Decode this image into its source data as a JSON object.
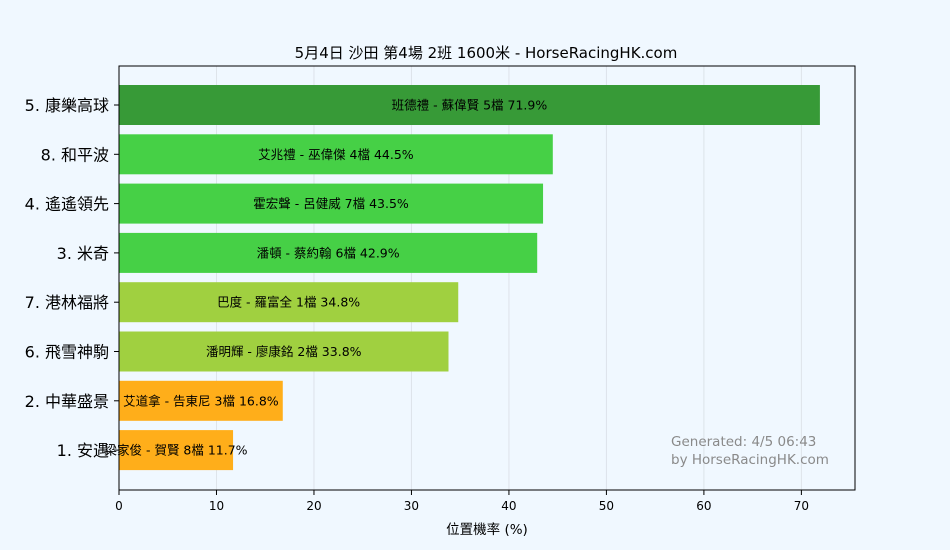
{
  "chart_data": {
    "type": "bar",
    "orientation": "horizontal",
    "title": "5月4日  沙田  第4場  2班  1600米 - HorseRacingHK.com",
    "xlabel": "位置機率 (%)",
    "ylabel": "",
    "xlim": [
      0,
      75.5
    ],
    "xticks": [
      0,
      10,
      20,
      30,
      40,
      50,
      60,
      70
    ],
    "grid": "vertical",
    "categories": [
      "5. 康樂高球",
      "8. 和平波",
      "4. 遙遙領先",
      "3. 米奇",
      "7. 港林福將",
      "6. 飛雪神駒",
      "2. 中華盛景",
      "1. 安遇"
    ],
    "values": [
      71.9,
      44.5,
      43.5,
      42.9,
      34.8,
      33.8,
      16.8,
      11.7
    ],
    "bar_labels": [
      "班德禮 - 蘇偉賢 5檔  71.9%",
      "艾兆禮 - 巫偉傑 4檔  44.5%",
      "霍宏聲 - 呂健威 7檔  43.5%",
      "潘頓 - 蔡約翰 6檔  42.9%",
      "巴度 - 羅富全 1檔  34.8%",
      "潘明輝 - 廖康銘 2檔  33.8%",
      "艾道拿 - 告東尼 3檔  16.8%",
      "梁家俊 - 賀賢 8檔  11.7%"
    ],
    "bar_colors": [
      "#379a37",
      "#46d046",
      "#46d046",
      "#46d046",
      "#a0d040",
      "#a0d040",
      "#ffae1a",
      "#ffae1a"
    ],
    "watermark": [
      "Generated: 4/5 06:43",
      "by HorseRacingHK.com"
    ]
  }
}
